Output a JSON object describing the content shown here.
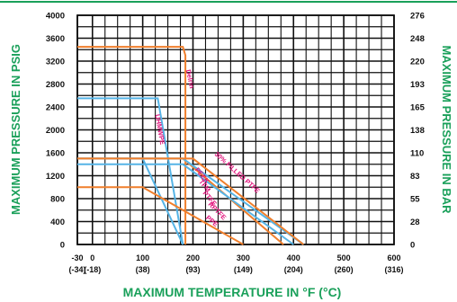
{
  "colors": {
    "accent": "#1aa05a",
    "grid": "#111111",
    "tick_text": "#111111",
    "series_text": "#e0107a",
    "orange": "#f07f2c",
    "blue": "#56b4e6"
  },
  "chart_data": {
    "type": "line",
    "title": "",
    "xlabel": "MAXIMUM TEMPERATURE IN °F (°C)",
    "ylabel": "MAXIMUM PRESSURE IN PSIG",
    "y2label": "MAXIMUM PRESSURE IN BAR",
    "xlim": [
      -30,
      600
    ],
    "ylim": [
      0,
      4000
    ],
    "grid": true,
    "x_ticks": [
      {
        "value": -30,
        "f": "-30",
        "c": "(-34)"
      },
      {
        "value": 0,
        "f": "0",
        "c": "(-18)"
      },
      {
        "value": 100,
        "f": "100",
        "c": "(38)"
      },
      {
        "value": 200,
        "f": "200",
        "c": "(93)"
      },
      {
        "value": 300,
        "f": "300",
        "c": "(149)"
      },
      {
        "value": 400,
        "f": "400",
        "c": "(204)"
      },
      {
        "value": 500,
        "f": "500",
        "c": "(260)"
      },
      {
        "value": 600,
        "f": "600",
        "c": "(316)"
      }
    ],
    "y_ticks": [
      {
        "value": 0,
        "label": "0"
      },
      {
        "value": 400,
        "label": "400"
      },
      {
        "value": 800,
        "label": "800"
      },
      {
        "value": 1200,
        "label": "1200"
      },
      {
        "value": 1600,
        "label": "1600"
      },
      {
        "value": 2000,
        "label": "2000"
      },
      {
        "value": 2400,
        "label": "2400"
      },
      {
        "value": 2800,
        "label": "2800"
      },
      {
        "value": 3200,
        "label": "3200"
      },
      {
        "value": 3600,
        "label": "3600"
      },
      {
        "value": 4000,
        "label": "4000"
      }
    ],
    "y2_ticks": [
      {
        "value": 0,
        "label": "0"
      },
      {
        "value": 400,
        "label": "28"
      },
      {
        "value": 800,
        "label": "55"
      },
      {
        "value": 1200,
        "label": "83"
      },
      {
        "value": 1600,
        "label": "110"
      },
      {
        "value": 2000,
        "label": "138"
      },
      {
        "value": 2400,
        "label": "165"
      },
      {
        "value": 2800,
        "label": "193"
      },
      {
        "value": 3200,
        "label": "220"
      },
      {
        "value": 3600,
        "label": "248"
      },
      {
        "value": 4000,
        "label": "276"
      }
    ],
    "series": [
      {
        "name": "Delrin",
        "color": "#f07f2c",
        "points": [
          [
            -30,
            3450
          ],
          [
            180,
            3450
          ],
          [
            185,
            3300
          ],
          [
            185,
            0
          ]
        ]
      },
      {
        "name": "UHMWPE",
        "color": "#56b4e6",
        "points": [
          [
            -30,
            2550
          ],
          [
            130,
            2550
          ],
          [
            180,
            0
          ]
        ]
      },
      {
        "name": "",
        "color": "#56b4e6",
        "points": [
          [
            -30,
            1500
          ],
          [
            100,
            1500
          ],
          [
            180,
            0
          ]
        ]
      },
      {
        "name": "",
        "color": "#f07f2c",
        "points": [
          [
            -30,
            1500
          ],
          [
            180,
            1500
          ],
          [
            380,
            0
          ]
        ]
      },
      {
        "name": "",
        "color": "#f07f2c",
        "points": [
          [
            -30,
            1000
          ],
          [
            100,
            1000
          ],
          [
            300,
            0
          ]
        ]
      },
      {
        "name": "",
        "color": "#56b4e6",
        "points": [
          [
            -30,
            1400
          ],
          [
            180,
            1400
          ],
          [
            400,
            0
          ]
        ]
      },
      {
        "name": "",
        "color": "#56b4e6",
        "points": [
          [
            -30,
            1500
          ],
          [
            180,
            1500
          ],
          [
            420,
            0
          ]
        ]
      },
      {
        "name": "",
        "color": "#f07f2c",
        "points": [
          [
            -30,
            1500
          ],
          [
            200,
            1500
          ],
          [
            420,
            0
          ]
        ]
      }
    ],
    "annotations": [
      {
        "text": "Delrin",
        "x": 190,
        "y": 2880,
        "angle": 78
      },
      {
        "text": "UHMWPE",
        "x": 130,
        "y": 2000,
        "angle": 80
      },
      {
        "text": "30% FILLED PTFE",
        "x": 285,
        "y": 1230,
        "angle": 42
      },
      {
        "text": "PEEK",
        "x": 215,
        "y": 1180,
        "angle": 50
      },
      {
        "text": "TFM",
        "x": 220,
        "y": 1000,
        "angle": 50
      },
      {
        "text": "PTFE",
        "x": 230,
        "y": 780,
        "angle": 50
      },
      {
        "text": "RPTFE",
        "x": 245,
        "y": 560,
        "angle": 45
      },
      {
        "text": "PPE",
        "x": 235,
        "y": 380,
        "angle": 40
      }
    ]
  }
}
